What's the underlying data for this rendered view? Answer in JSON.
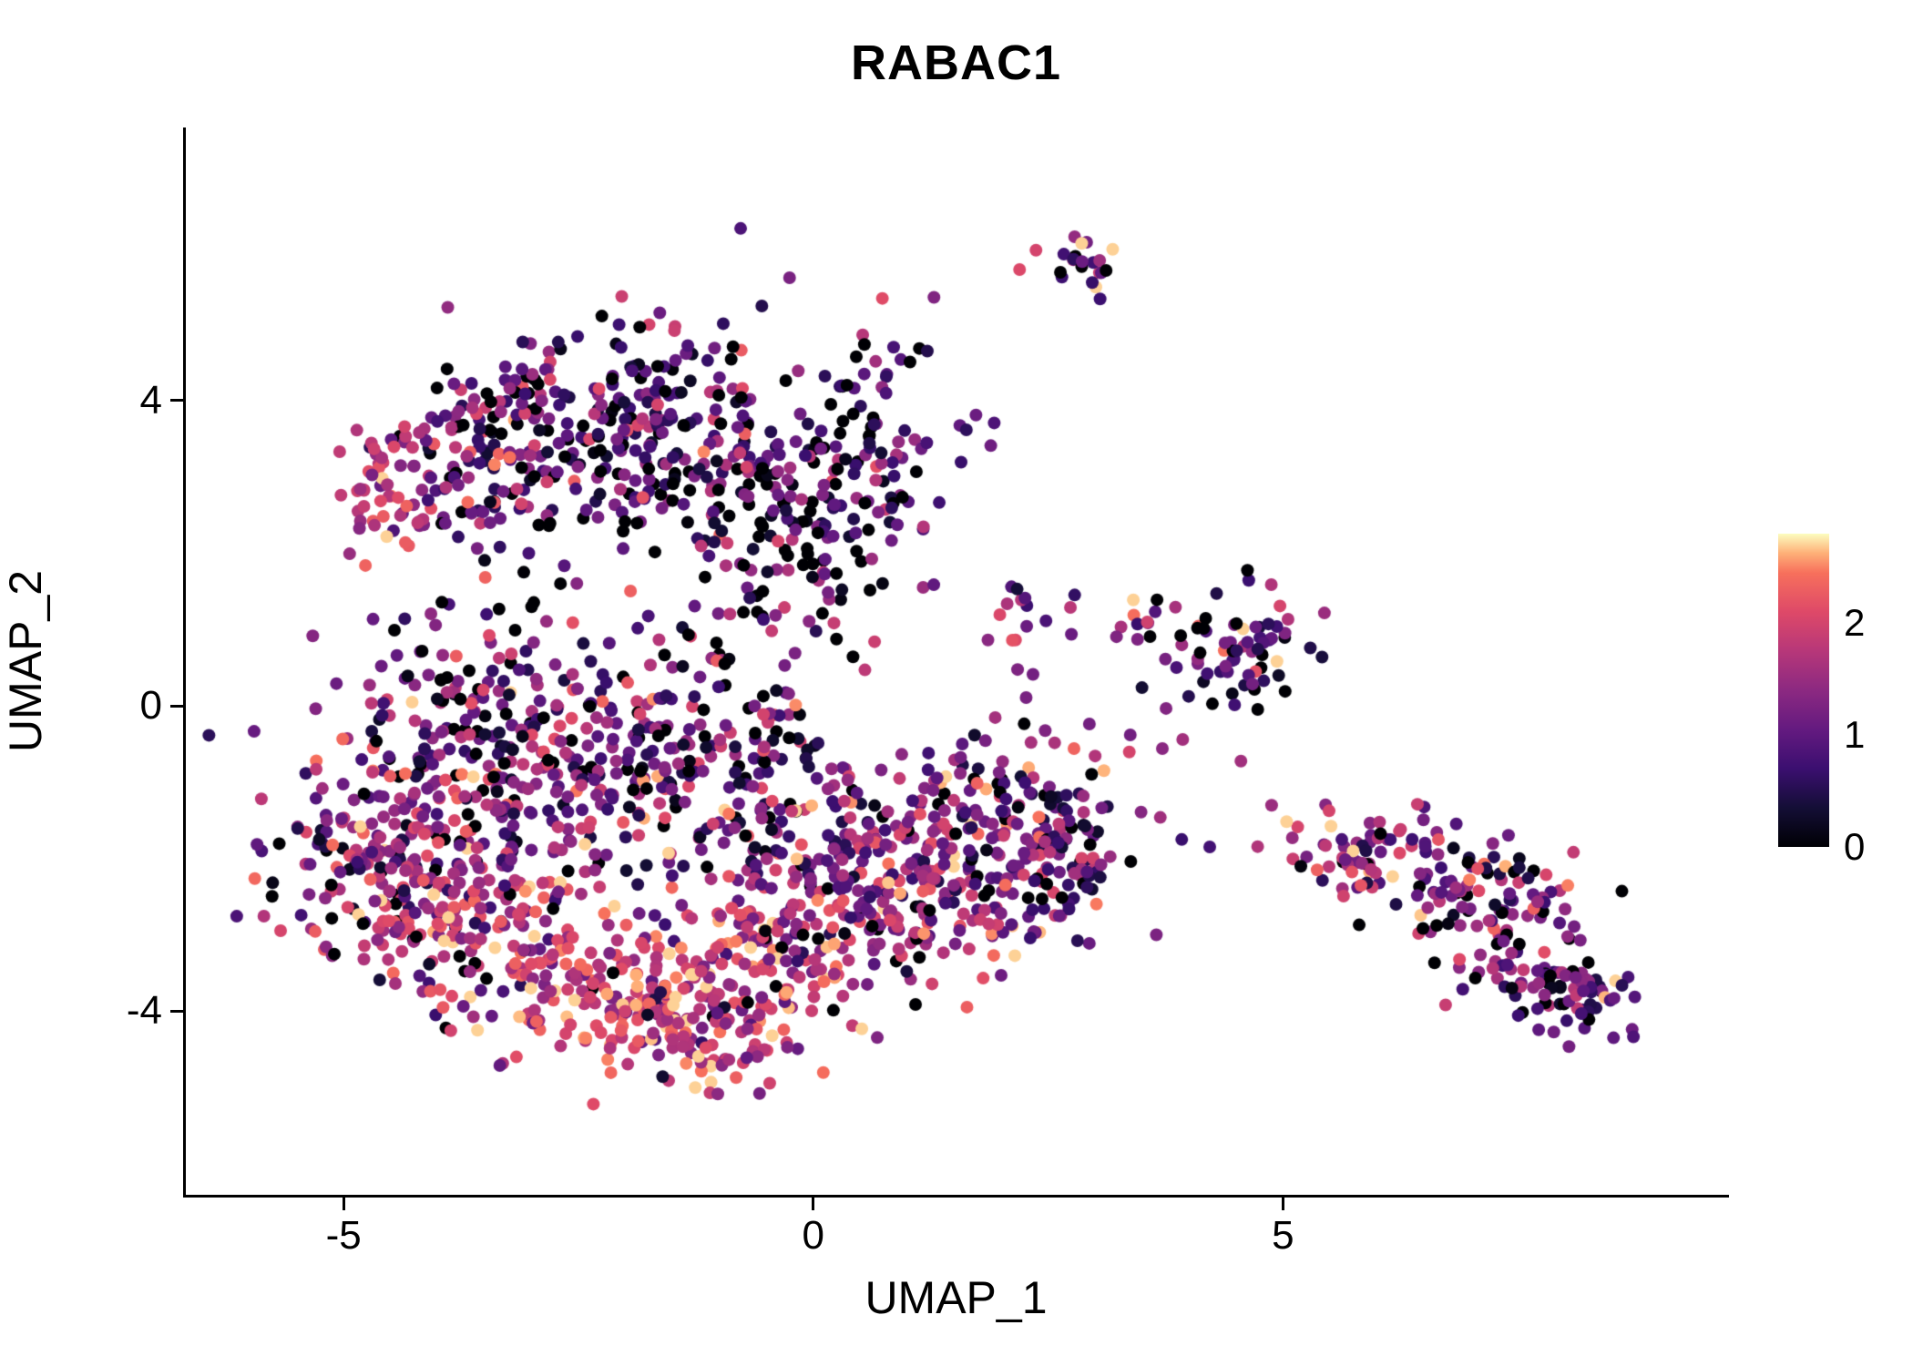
{
  "title": "RABAC1",
  "axes": {
    "x_label": "UMAP_1",
    "y_label": "UMAP_2",
    "x_ticks": [
      {
        "value": -5,
        "label": "-5"
      },
      {
        "value": 0,
        "label": "0"
      },
      {
        "value": 5,
        "label": "5"
      }
    ],
    "y_ticks": [
      {
        "value": 4,
        "label": "4"
      },
      {
        "value": 0,
        "label": "0"
      },
      {
        "value": -4,
        "label": "-4"
      }
    ]
  },
  "colorbar": {
    "ticks": [
      {
        "value": 2,
        "label": "2"
      },
      {
        "value": 1,
        "label": "1"
      },
      {
        "value": 0,
        "label": "0"
      }
    ],
    "domain": [
      0,
      2.8
    ]
  },
  "colormap": {
    "name": "magma",
    "stops": [
      [
        0.0,
        "#000004"
      ],
      [
        0.125,
        "#140e36"
      ],
      [
        0.25,
        "#3b0f70"
      ],
      [
        0.375,
        "#641a80"
      ],
      [
        0.5,
        "#8c2981"
      ],
      [
        0.625,
        "#b73779"
      ],
      [
        0.75,
        "#de4968"
      ],
      [
        0.875,
        "#f7705c"
      ],
      [
        0.9375,
        "#feb078"
      ],
      [
        1.0,
        "#fcfdbf"
      ]
    ]
  },
  "chart_data": {
    "type": "scatter",
    "title": "RABAC1",
    "xlabel": "UMAP_1",
    "ylabel": "UMAP_2",
    "xlim": [
      -6.68,
      9.72
    ],
    "ylim": [
      -6.41,
      7.58
    ],
    "grid": false,
    "legend_position": "right-colorbar",
    "color_domain": [
      0,
      2.8
    ],
    "value_clamp": 2.7,
    "point_radius_px": 7,
    "seed": 42,
    "clusters": [
      {
        "name": "upper-left-a",
        "cx": -2.6,
        "cy": 3.9,
        "sx": 1.0,
        "sy": 0.55,
        "n": 150,
        "expr_mean": 0.9,
        "expr_sd": 0.7,
        "zero_frac": 0.15
      },
      {
        "name": "upper-left-b",
        "cx": -1.6,
        "cy": 3.2,
        "sx": 0.8,
        "sy": 0.8,
        "n": 140,
        "expr_mean": 0.8,
        "expr_sd": 0.7,
        "zero_frac": 0.18
      },
      {
        "name": "upper-left-c",
        "cx": -0.4,
        "cy": 2.5,
        "sx": 0.7,
        "sy": 0.9,
        "n": 140,
        "expr_mean": 0.85,
        "expr_sd": 0.7,
        "zero_frac": 0.15
      },
      {
        "name": "upper-left-d",
        "cx": -3.5,
        "cy": 3.0,
        "sx": 0.6,
        "sy": 0.6,
        "n": 80,
        "expr_mean": 1.3,
        "expr_sd": 0.6,
        "zero_frac": 0.08
      },
      {
        "name": "left-arm",
        "cx": -4.4,
        "cy": 2.9,
        "sx": 0.35,
        "sy": 0.5,
        "n": 55,
        "expr_mean": 1.8,
        "expr_sd": 0.5,
        "zero_frac": 0.03
      },
      {
        "name": "trail-up",
        "cx": 0.75,
        "cy": 4.65,
        "sx": 0.35,
        "sy": 0.3,
        "n": 10,
        "expr_mean": 1.3,
        "expr_sd": 0.7,
        "zero_frac": 0.1
      },
      {
        "name": "upper-right-edge",
        "cx": 0.55,
        "cy": 3.2,
        "sx": 0.45,
        "sy": 0.8,
        "n": 70,
        "expr_mean": 0.75,
        "expr_sd": 0.65,
        "zero_frac": 0.18
      },
      {
        "name": "mid-band-a",
        "cx": -3.8,
        "cy": -0.4,
        "sx": 0.75,
        "sy": 0.8,
        "n": 170,
        "expr_mean": 1.0,
        "expr_sd": 0.7,
        "zero_frac": 0.12
      },
      {
        "name": "mid-band-b",
        "cx": -2.3,
        "cy": -0.6,
        "sx": 0.8,
        "sy": 0.7,
        "n": 150,
        "expr_mean": 1.1,
        "expr_sd": 0.7,
        "zero_frac": 0.1
      },
      {
        "name": "mid-band-c",
        "cx": -0.9,
        "cy": -0.2,
        "sx": 0.6,
        "sy": 0.65,
        "n": 90,
        "expr_mean": 0.9,
        "expr_sd": 0.7,
        "zero_frac": 0.12
      },
      {
        "name": "left-low-a",
        "cx": -4.6,
        "cy": -1.9,
        "sx": 0.6,
        "sy": 0.8,
        "n": 160,
        "expr_mean": 1.5,
        "expr_sd": 0.65,
        "zero_frac": 0.05
      },
      {
        "name": "left-low-b",
        "cx": -3.6,
        "cy": -2.6,
        "sx": 0.7,
        "sy": 0.7,
        "n": 170,
        "expr_mean": 1.6,
        "expr_sd": 0.6,
        "zero_frac": 0.05
      },
      {
        "name": "bottom-a",
        "cx": -2.3,
        "cy": -3.6,
        "sx": 0.8,
        "sy": 0.6,
        "n": 160,
        "expr_mean": 1.9,
        "expr_sd": 0.55,
        "zero_frac": 0.03
      },
      {
        "name": "bottom-b",
        "cx": -1.2,
        "cy": -4.2,
        "sx": 0.6,
        "sy": 0.5,
        "n": 115,
        "expr_mean": 2.0,
        "expr_sd": 0.5,
        "zero_frac": 0.02
      },
      {
        "name": "bottom-c",
        "cx": -0.55,
        "cy": -3.1,
        "sx": 0.6,
        "sy": 0.7,
        "n": 110,
        "expr_mean": 1.7,
        "expr_sd": 0.6,
        "zero_frac": 0.04
      },
      {
        "name": "center-sparse",
        "cx": -0.7,
        "cy": -1.4,
        "sx": 0.9,
        "sy": 0.55,
        "n": 65,
        "expr_mean": 1.2,
        "expr_sd": 0.7,
        "zero_frac": 0.1
      },
      {
        "name": "center-right-a",
        "cx": 0.35,
        "cy": -2.2,
        "sx": 0.7,
        "sy": 0.8,
        "n": 130,
        "expr_mean": 1.45,
        "expr_sd": 0.65,
        "zero_frac": 0.06
      },
      {
        "name": "center-right-b",
        "cx": 1.2,
        "cy": -2.6,
        "sx": 0.6,
        "sy": 0.6,
        "n": 115,
        "expr_mean": 1.5,
        "expr_sd": 0.6,
        "zero_frac": 0.05
      },
      {
        "name": "right-mid-a",
        "cx": 2.2,
        "cy": -1.9,
        "sx": 0.5,
        "sy": 0.7,
        "n": 110,
        "expr_mean": 1.2,
        "expr_sd": 0.7,
        "zero_frac": 0.08
      },
      {
        "name": "right-mid-b",
        "cx": 1.6,
        "cy": -1.2,
        "sx": 0.4,
        "sy": 0.4,
        "n": 45,
        "expr_mean": 1.3,
        "expr_sd": 0.6,
        "zero_frac": 0.06
      },
      {
        "name": "right-mid-edge",
        "cx": 2.7,
        "cy": -2.0,
        "sx": 0.25,
        "sy": 0.6,
        "n": 50,
        "expr_mean": 1.0,
        "expr_sd": 0.7,
        "zero_frac": 0.1
      },
      {
        "name": "top-small",
        "cx": 2.85,
        "cy": 5.75,
        "sx": 0.22,
        "sy": 0.22,
        "n": 22,
        "expr_mean": 1.5,
        "expr_sd": 0.8,
        "zero_frac": 0.08
      },
      {
        "name": "small-f",
        "cx": 2.1,
        "cy": 1.15,
        "sx": 0.28,
        "sy": 0.16,
        "n": 12,
        "expr_mean": 1.3,
        "expr_sd": 0.7,
        "zero_frac": 0.08
      },
      {
        "name": "small-g",
        "cx": 3.4,
        "cy": 1.15,
        "sx": 0.2,
        "sy": 0.2,
        "n": 9,
        "expr_mean": 1.5,
        "expr_sd": 0.7,
        "zero_frac": 0.05
      },
      {
        "name": "right-cluster-h",
        "cx": 4.5,
        "cy": 0.75,
        "sx": 0.45,
        "sy": 0.4,
        "n": 70,
        "expr_mean": 0.95,
        "expr_sd": 0.8,
        "zero_frac": 0.15
      },
      {
        "name": "far-right-tip",
        "cx": 5.7,
        "cy": -1.85,
        "sx": 0.3,
        "sy": 0.25,
        "n": 25,
        "expr_mean": 1.4,
        "expr_sd": 0.6,
        "zero_frac": 0.05
      },
      {
        "name": "far-right-a",
        "cx": 6.4,
        "cy": -2.1,
        "sx": 0.5,
        "sy": 0.35,
        "n": 60,
        "expr_mean": 1.2,
        "expr_sd": 0.7,
        "zero_frac": 0.08
      },
      {
        "name": "far-right-b",
        "cx": 7.3,
        "cy": -2.6,
        "sx": 0.5,
        "sy": 0.4,
        "n": 70,
        "expr_mean": 1.1,
        "expr_sd": 0.7,
        "zero_frac": 0.1
      },
      {
        "name": "far-right-c",
        "cx": 7.7,
        "cy": -3.5,
        "sx": 0.45,
        "sy": 0.3,
        "n": 55,
        "expr_mean": 1.1,
        "expr_sd": 0.7,
        "zero_frac": 0.1
      },
      {
        "name": "far-right-d",
        "cx": 8.2,
        "cy": -3.9,
        "sx": 0.3,
        "sy": 0.22,
        "n": 35,
        "expr_mean": 1.0,
        "expr_sd": 0.7,
        "zero_frac": 0.12
      },
      {
        "name": "connector-a",
        "cx": 3.3,
        "cy": -0.7,
        "sx": 0.7,
        "sy": 0.5,
        "n": 13,
        "expr_mean": 1.6,
        "expr_sd": 0.5,
        "zero_frac": 0.05
      },
      {
        "name": "connector-b",
        "cx": 4.9,
        "cy": -1.6,
        "sx": 0.45,
        "sy": 0.25,
        "n": 8,
        "expr_mean": 1.5,
        "expr_sd": 0.5,
        "zero_frac": 0.05
      },
      {
        "name": "connector-c",
        "cx": 2.45,
        "cy": 0.3,
        "sx": 0.3,
        "sy": 0.45,
        "n": 8,
        "expr_mean": 1.2,
        "expr_sd": 0.6,
        "zero_frac": 0.1
      },
      {
        "name": "trail-mid",
        "cx": 1.35,
        "cy": 4.1,
        "sx": 0.4,
        "sy": 0.4,
        "n": 6,
        "expr_mean": 1.1,
        "expr_sd": 0.7,
        "zero_frac": 0.1
      }
    ]
  }
}
